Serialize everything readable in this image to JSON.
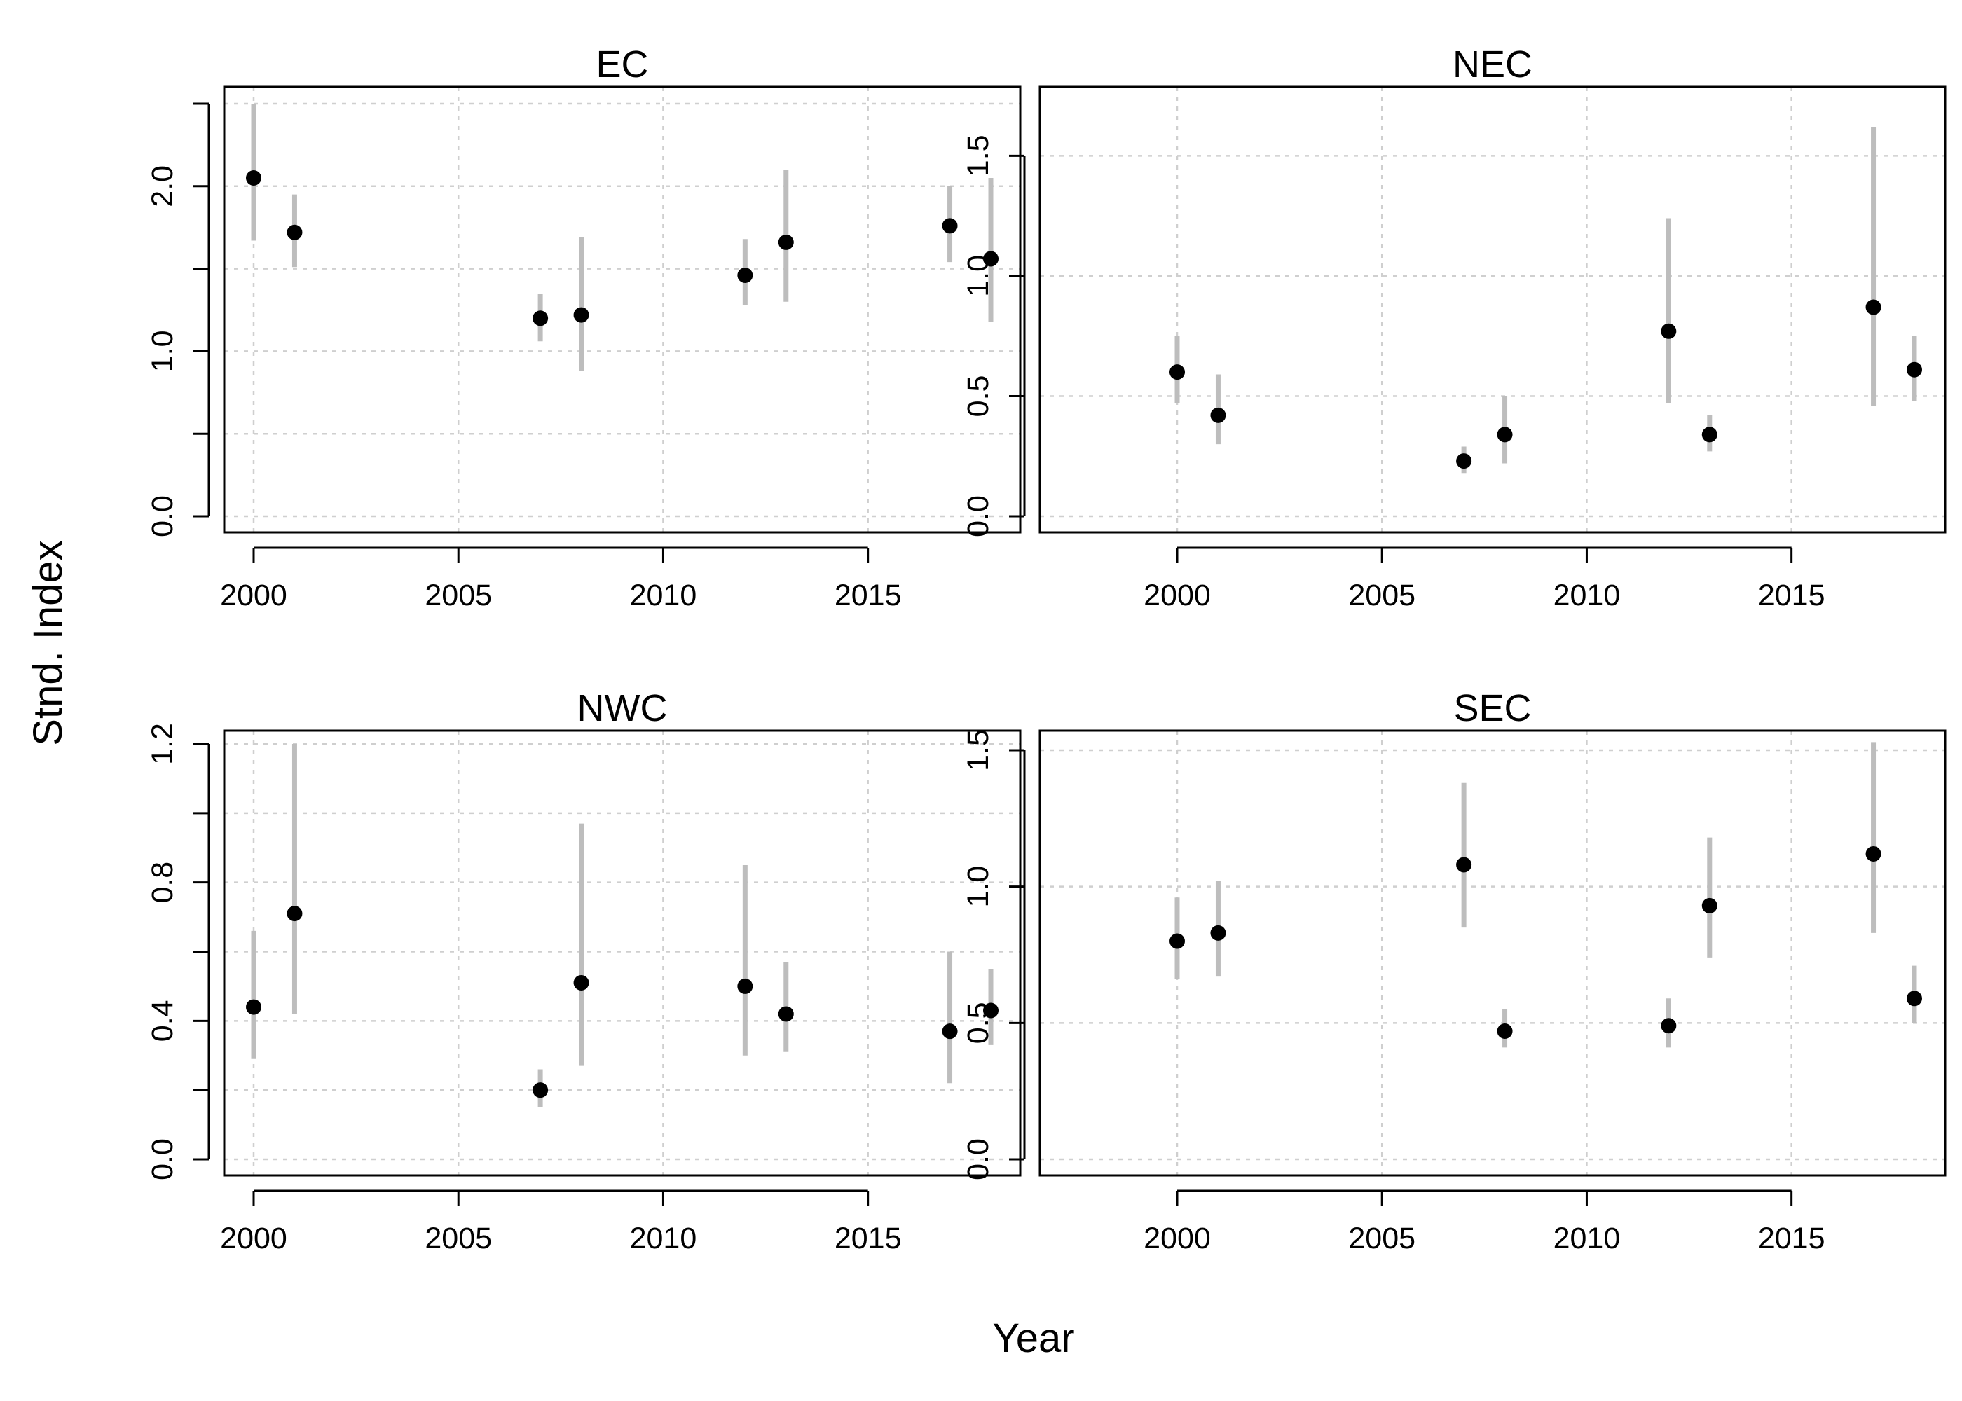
{
  "figure": {
    "ylabel": "Stnd. Index",
    "xlabel": "Year"
  },
  "chart_data": [
    {
      "type": "scatter",
      "title": "EC",
      "xlim": [
        2000,
        2018
      ],
      "ylim": [
        0,
        2.5
      ],
      "xticks": [
        2000,
        2005,
        2010,
        2015
      ],
      "xtick_labels": [
        "2000",
        "2005",
        "2010",
        "2015"
      ],
      "yticks": [
        0,
        0.5,
        1.0,
        1.5,
        2.0,
        2.5
      ],
      "ytick_labels": [
        "0.0",
        "",
        "1.0",
        "",
        "2.0",
        ""
      ],
      "grid": true,
      "series": [
        {
          "x": [
            2000,
            2001,
            2007,
            2008,
            2012,
            2013,
            2017,
            2018
          ],
          "y": [
            2.05,
            1.72,
            1.2,
            1.22,
            1.46,
            1.66,
            1.76,
            1.56
          ],
          "lower": [
            1.67,
            1.51,
            1.06,
            0.88,
            1.28,
            1.3,
            1.54,
            1.18
          ],
          "upper": [
            2.5,
            1.95,
            1.35,
            1.69,
            1.68,
            2.1,
            2.0,
            2.05
          ]
        }
      ]
    },
    {
      "type": "scatter",
      "title": "NEC",
      "xlim": [
        2000,
        2018
      ],
      "ylim": [
        0,
        1.6
      ],
      "xticks": [
        2000,
        2005,
        2010,
        2015
      ],
      "xtick_labels": [
        "2000",
        "2005",
        "2010",
        "2015"
      ],
      "yticks": [
        0,
        0.5,
        1.0,
        1.5
      ],
      "ytick_labels": [
        "0.0",
        "0.5",
        "1.0",
        "1.5"
      ],
      "grid": true,
      "series": [
        {
          "x": [
            2000,
            2001,
            2007,
            2008,
            2012,
            2013,
            2017,
            2018
          ],
          "y": [
            0.6,
            0.42,
            0.23,
            0.34,
            0.77,
            0.34,
            0.87,
            0.61
          ],
          "lower": [
            0.47,
            0.3,
            0.18,
            0.22,
            0.47,
            0.27,
            0.46,
            0.48
          ],
          "upper": [
            0.75,
            0.59,
            0.29,
            0.5,
            1.24,
            0.42,
            1.62,
            0.75
          ]
        }
      ]
    },
    {
      "type": "scatter",
      "title": "NWC",
      "xlim": [
        2000,
        2018
      ],
      "ylim": [
        0,
        1.2
      ],
      "xticks": [
        2000,
        2005,
        2010,
        2015
      ],
      "xtick_labels": [
        "2000",
        "2005",
        "2010",
        "2015"
      ],
      "yticks": [
        0,
        0.2,
        0.4,
        0.6,
        0.8,
        1.0,
        1.2
      ],
      "ytick_labels": [
        "0.0",
        "",
        "0.4",
        "",
        "0.8",
        "",
        "1.2"
      ],
      "grid": true,
      "series": [
        {
          "x": [
            2000,
            2001,
            2007,
            2008,
            2012,
            2013,
            2017,
            2018
          ],
          "y": [
            0.44,
            0.71,
            0.2,
            0.51,
            0.5,
            0.42,
            0.37,
            0.43
          ],
          "lower": [
            0.29,
            0.42,
            0.15,
            0.27,
            0.3,
            0.31,
            0.22,
            0.33
          ],
          "upper": [
            0.66,
            1.2,
            0.26,
            0.97,
            0.85,
            0.57,
            0.6,
            0.55
          ]
        }
      ]
    },
    {
      "type": "scatter",
      "title": "SEC",
      "xlim": [
        2000,
        2018
      ],
      "ylim": [
        0,
        1.5
      ],
      "xticks": [
        2000,
        2005,
        2010,
        2015
      ],
      "xtick_labels": [
        "2000",
        "2005",
        "2010",
        "2015"
      ],
      "yticks": [
        0,
        0.5,
        1.0,
        1.5
      ],
      "ytick_labels": [
        "0.0",
        "0.5",
        "1.0",
        "1.5"
      ],
      "grid": true,
      "series": [
        {
          "x": [
            2000,
            2001,
            2007,
            2008,
            2012,
            2013,
            2017,
            2018
          ],
          "y": [
            0.8,
            0.83,
            1.08,
            0.47,
            0.49,
            0.93,
            1.12,
            0.59
          ],
          "lower": [
            0.66,
            0.67,
            0.85,
            0.41,
            0.41,
            0.74,
            0.83,
            0.5
          ],
          "upper": [
            0.96,
            1.02,
            1.38,
            0.55,
            0.59,
            1.18,
            1.53,
            0.71
          ]
        }
      ]
    }
  ]
}
